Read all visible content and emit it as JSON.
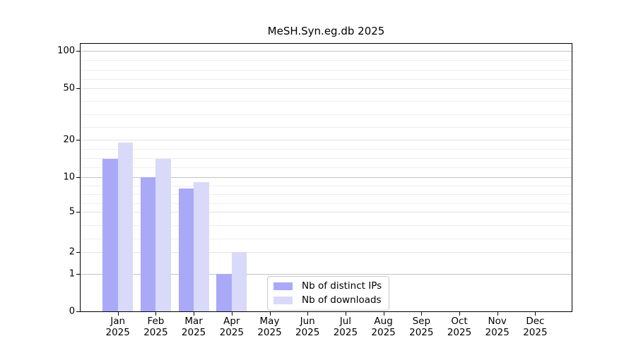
{
  "title": "MeSH.Syn.eg.db 2025",
  "chart_data": {
    "type": "bar",
    "title": "MeSH.Syn.eg.db 2025",
    "categories": [
      "Jan 2025",
      "Feb 2025",
      "Mar 2025",
      "Apr 2025",
      "May 2025",
      "Jun 2025",
      "Jul 2025",
      "Aug 2025",
      "Sep 2025",
      "Oct 2025",
      "Nov 2025",
      "Dec 2025"
    ],
    "series": [
      {
        "name": "Nb of distinct IPs",
        "color": "#a9a9f7",
        "values": [
          14,
          10,
          8,
          1,
          null,
          null,
          null,
          null,
          null,
          null,
          null,
          null
        ]
      },
      {
        "name": "Nb of downloads",
        "color": "#d9d9f9",
        "values": [
          19,
          14,
          9,
          2,
          null,
          null,
          null,
          null,
          null,
          null,
          null,
          null
        ]
      }
    ],
    "yticks": [
      0,
      1,
      2,
      5,
      10,
      20,
      50,
      100
    ],
    "ylim": [
      0,
      100
    ],
    "yscale": "log-like (0,1,2,5,10,20,50,100)",
    "xlabel": "",
    "ylabel": "",
    "grid": "horizontal major+minor",
    "legend_position": "lower center inside plot"
  },
  "legend": {
    "items": [
      {
        "label": "Nb of distinct IPs",
        "color": "#a9a9f7"
      },
      {
        "label": "Nb of downloads",
        "color": "#d9d9f9"
      }
    ]
  }
}
